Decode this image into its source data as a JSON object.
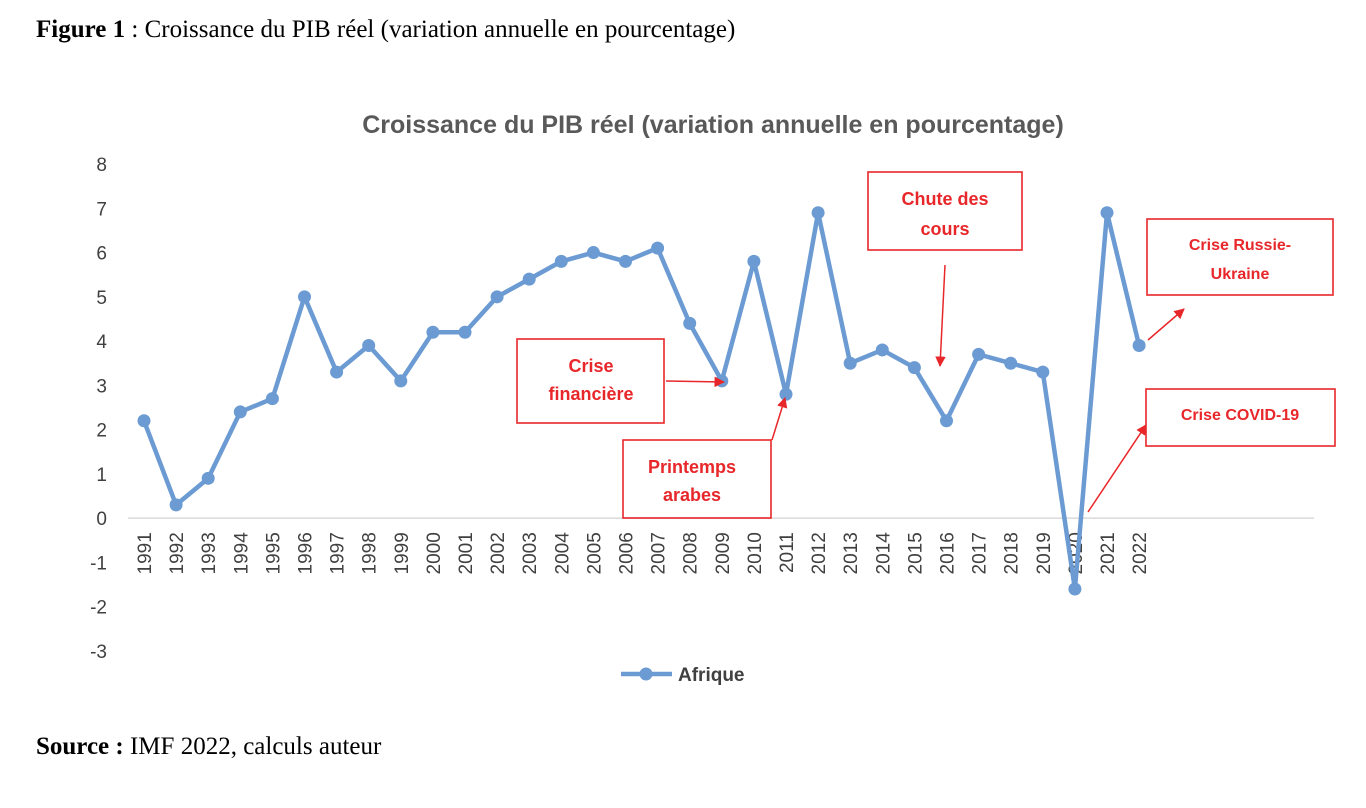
{
  "figure_caption": {
    "bold": "Figure 1",
    "text": " : Croissance du PIB réel (variation annuelle en pourcentage)"
  },
  "source_caption": {
    "bold": "Source :",
    "text": " IMF 2022, calculs auteur"
  },
  "colors": {
    "series": "#6b9bd2",
    "annotation": "#e8272a",
    "axis": "#d9d9d9",
    "text": "#404040"
  },
  "chart_data": {
    "type": "line",
    "title": "Croissance du PIB réel (variation annuelle en pourcentage)",
    "xlabel": "",
    "ylabel": "",
    "ylim": [
      -3,
      8
    ],
    "yticks": [
      "8",
      "7",
      "6",
      "5",
      "4",
      "3",
      "2",
      "1",
      "0",
      "-1",
      "-2",
      "-3"
    ],
    "grid": false,
    "legend_position": "bottom",
    "categories": [
      "1991",
      "1992",
      "1993",
      "1994",
      "1995",
      "1996",
      "1997",
      "1998",
      "1999",
      "2000",
      "2001",
      "2002",
      "2003",
      "2004",
      "2005",
      "2006",
      "2007",
      "2008",
      "2009",
      "2010",
      "2011",
      "2012",
      "2013",
      "2014",
      "2015",
      "2016",
      "2017",
      "2018",
      "2019",
      "2020",
      "2021",
      "2022"
    ],
    "series": [
      {
        "name": "Afrique",
        "values": [
          2.2,
          0.3,
          0.9,
          2.4,
          2.7,
          5.0,
          3.3,
          3.9,
          3.1,
          4.2,
          4.2,
          5.0,
          5.4,
          5.8,
          6.0,
          5.8,
          6.1,
          4.4,
          3.1,
          5.8,
          2.8,
          6.9,
          3.5,
          3.8,
          3.4,
          2.2,
          3.7,
          3.5,
          3.3,
          -1.6,
          6.9,
          3.9
        ]
      }
    ],
    "annotations": [
      {
        "lines": [
          "Crise",
          "financière"
        ],
        "target": "2009"
      },
      {
        "lines": [
          "Printemps",
          "arabes"
        ],
        "target": "2011"
      },
      {
        "lines": [
          "Chute des",
          "cours"
        ],
        "target": "2016"
      },
      {
        "lines": [
          "Crise Russie-",
          "Ukraine"
        ],
        "target": "2022"
      },
      {
        "lines": [
          "Crise COVID-19"
        ],
        "target": "2020"
      }
    ]
  }
}
